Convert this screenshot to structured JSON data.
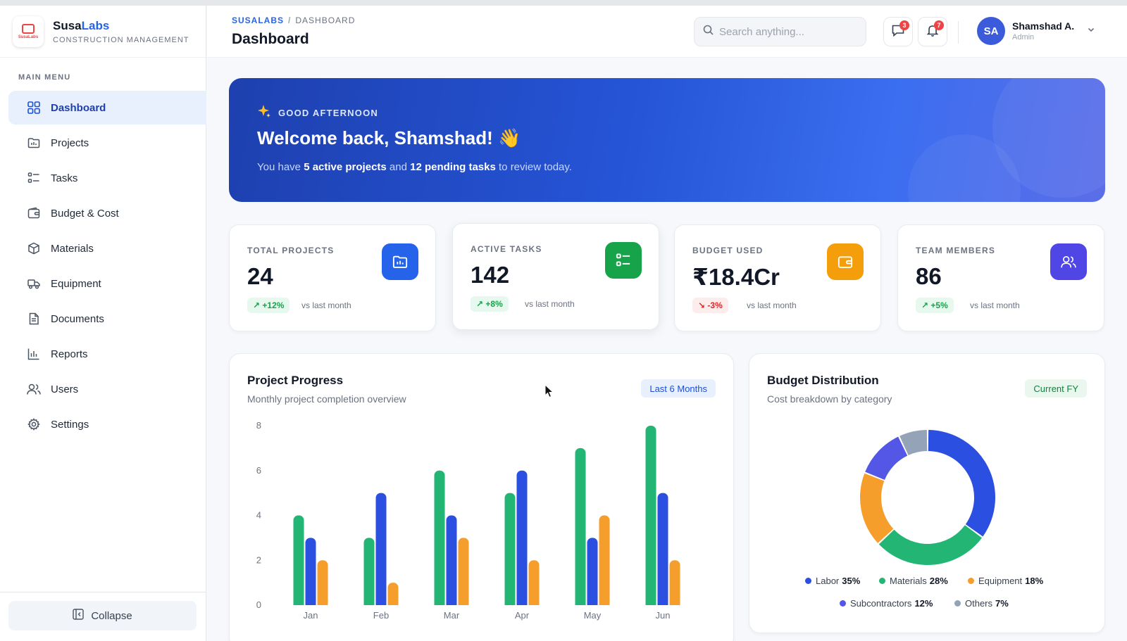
{
  "brand": {
    "name_part1": "Susa",
    "name_part2": "Labs",
    "subtitle": "CONSTRUCTION MANAGEMENT",
    "logo_text": "SusaLabs"
  },
  "sidebar": {
    "section_label": "MAIN MENU",
    "items": [
      {
        "label": "Dashboard",
        "icon": "grid-icon",
        "active": true
      },
      {
        "label": "Projects",
        "icon": "folder-icon"
      },
      {
        "label": "Tasks",
        "icon": "list-check-icon"
      },
      {
        "label": "Budget & Cost",
        "icon": "wallet-icon"
      },
      {
        "label": "Materials",
        "icon": "box-icon"
      },
      {
        "label": "Equipment",
        "icon": "truck-icon"
      },
      {
        "label": "Documents",
        "icon": "document-icon"
      },
      {
        "label": "Reports",
        "icon": "bar-chart-icon"
      },
      {
        "label": "Users",
        "icon": "users-icon"
      },
      {
        "label": "Settings",
        "icon": "gear-icon"
      }
    ],
    "collapse_label": "Collapse"
  },
  "header": {
    "breadcrumb": [
      "SUSALABS",
      "DASHBOARD"
    ],
    "title": "Dashboard",
    "search_placeholder": "Search anything...",
    "messages_count": "3",
    "notifications_count": "7",
    "user": {
      "initials": "SA",
      "name": "Shamshad A.",
      "role": "Admin"
    }
  },
  "banner": {
    "greeting": "GOOD AFTERNOON",
    "welcome": "Welcome back, Shamshad! 👋",
    "summary_prefix": "You have ",
    "active_projects": "5 active projects",
    "summary_mid": " and ",
    "pending_tasks": "12 pending tasks",
    "summary_suffix": " to review today."
  },
  "stats": [
    {
      "label": "TOTAL PROJECTS",
      "value": "24",
      "trend": "+12%",
      "direction": "up",
      "vs": "vs last month",
      "icon": "folder-icon",
      "color": "#2563eb"
    },
    {
      "label": "ACTIVE TASKS",
      "value": "142",
      "trend": "+8%",
      "direction": "up",
      "vs": "vs last month",
      "icon": "list-check-icon",
      "color": "#16a34a"
    },
    {
      "label": "BUDGET USED",
      "value": "₹18.4Cr",
      "trend": "-3%",
      "direction": "down",
      "vs": "vs last month",
      "icon": "wallet-icon",
      "color": "#f59e0b"
    },
    {
      "label": "TEAM MEMBERS",
      "value": "86",
      "trend": "+5%",
      "direction": "up",
      "vs": "vs last month",
      "icon": "users-icon",
      "color": "#4f46e5"
    }
  ],
  "progress_card": {
    "title": "Project Progress",
    "subtitle": "Monthly project completion overview",
    "filter": "Last 6 Months"
  },
  "budget_card": {
    "title": "Budget Distribution",
    "subtitle": "Cost breakdown by category",
    "filter": "Current FY"
  },
  "colors": {
    "green": "#22b573",
    "blue": "#2b4fe0",
    "orange": "#f59e2b",
    "violet": "#5457e6",
    "gray": "#94a3b8"
  },
  "chart_data": [
    {
      "type": "bar",
      "categories": [
        "Jan",
        "Feb",
        "Mar",
        "Apr",
        "May",
        "Jun"
      ],
      "series": [
        {
          "values": [
            4,
            3,
            6,
            5,
            7,
            8
          ],
          "color": "#22b573"
        },
        {
          "values": [
            3,
            5,
            4,
            6,
            3,
            5
          ],
          "color": "#2b4fe0"
        },
        {
          "values": [
            2,
            1,
            3,
            2,
            4,
            2
          ],
          "color": "#f59e2b"
        }
      ],
      "yticks": [
        "0",
        "2",
        "4",
        "6",
        "8"
      ],
      "ylim": [
        0,
        8
      ],
      "grid": false
    },
    {
      "type": "pie",
      "donut": true,
      "slices": [
        {
          "name": "Labor",
          "value": 35,
          "pct": "35%",
          "color": "#2b4fe0"
        },
        {
          "name": "Materials",
          "value": 28,
          "pct": "28%",
          "color": "#22b573"
        },
        {
          "name": "Equipment",
          "value": 18,
          "pct": "18%",
          "color": "#f59e2b"
        },
        {
          "name": "Subcontractors",
          "value": 12,
          "pct": "12%",
          "color": "#5457e6"
        },
        {
          "name": "Others",
          "value": 7,
          "pct": "7%",
          "color": "#94a3b8"
        }
      ],
      "legend_position": "bottom"
    }
  ]
}
